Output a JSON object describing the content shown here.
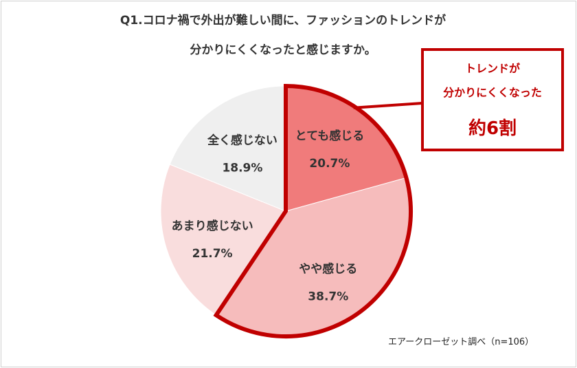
{
  "title_line1": "Q1.コロナ禍で外出が難しい間に、ファッションのトレンドが",
  "title_line2": "分かりにくくなったと感じますか。",
  "source": "エアークローゼット調べ（n=106）",
  "callout": {
    "line1": "トレンドが",
    "line2": "分かりにくくなった",
    "line3": "約6割"
  },
  "colors": {
    "accent": "#c00000",
    "frame": "#cfcfcf"
  },
  "chart_data": {
    "type": "pie",
    "title": "Q1.コロナ禍で外出が難しい間に、ファッションのトレンドが 分かりにくくなったと感じますか。",
    "start_angle_deg": 0,
    "direction": "clockwise",
    "slices": [
      {
        "label": "とても感じる",
        "value": 20.7,
        "value_label": "20.7%",
        "color": "#f07b7b",
        "highlighted": true
      },
      {
        "label": "やや感じる",
        "value": 38.7,
        "value_label": "38.7%",
        "color": "#f6bcbc",
        "highlighted": true
      },
      {
        "label": "あまり感じない",
        "value": 21.7,
        "value_label": "21.7%",
        "color": "#f9dddd",
        "highlighted": false
      },
      {
        "label": "全く感じない",
        "value": 18.9,
        "value_label": "18.9%",
        "color": "#efefef",
        "highlighted": false
      }
    ]
  }
}
